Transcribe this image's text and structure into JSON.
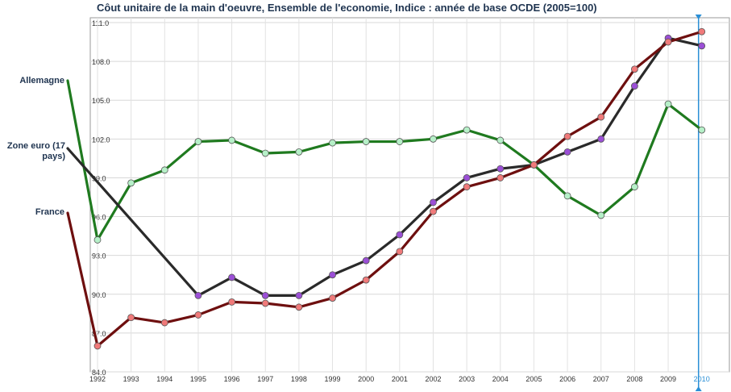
{
  "chart_data": {
    "type": "line",
    "title": "Côut unitaire de la main d'oeuvre, Ensemble de l'economie, Indice : année de base OCDE (2005=100)",
    "x": [
      "1992",
      "1993",
      "1994",
      "1995",
      "1996",
      "1997",
      "1998",
      "1999",
      "2000",
      "2001",
      "2002",
      "2003",
      "2004",
      "2005",
      "2006",
      "2007",
      "2008",
      "2009",
      "2010"
    ],
    "highlight_x": "2010",
    "yticks": [
      "84.0",
      "87.0",
      "90.0",
      "93.0",
      "96.0",
      "99.0",
      "102.0",
      "105.0",
      "108.0",
      "111.0"
    ],
    "ylim": [
      84,
      111
    ],
    "grid": true,
    "series": [
      {
        "name": "Allemagne",
        "color": "#1f7a1f",
        "marker": "#b6f0c8",
        "values": [
          94.2,
          98.6,
          99.6,
          101.8,
          101.9,
          100.9,
          101.0,
          101.7,
          101.8,
          101.8,
          102.0,
          102.7,
          101.9,
          100.0,
          97.6,
          96.1,
          98.3,
          104.7,
          102.7
        ]
      },
      {
        "name": "Zone euro (17 pays)",
        "color": "#2a2a2a",
        "marker": "#9b4fd6",
        "values": null,
        "values_from_1995": [
          89.9,
          91.3,
          89.9,
          89.9,
          91.5,
          92.6,
          94.6,
          97.1,
          99.0,
          99.7,
          100.0,
          101.0,
          102.0,
          106.1,
          109.8,
          109.2
        ]
      },
      {
        "name": "France",
        "color": "#6e0f0f",
        "marker": "#f07a7a",
        "values": [
          86.0,
          88.2,
          87.8,
          88.4,
          89.4,
          89.3,
          89.0,
          89.7,
          91.1,
          93.3,
          96.4,
          98.3,
          99.0,
          100.0,
          102.2,
          103.7,
          107.4,
          109.5,
          110.3
        ]
      }
    ]
  },
  "labels": {
    "allemagne": "Allemagne",
    "zone_euro": "Zone euro (17\npays)",
    "france": "France"
  }
}
